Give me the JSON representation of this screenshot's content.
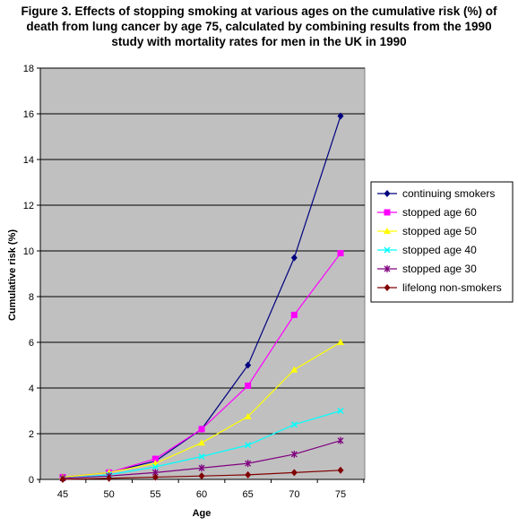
{
  "chart_data": {
    "type": "line",
    "title": [
      "Figure 3. Effects of stopping smoking at various ages on the cumulative risk (%) of",
      "death from lung cancer by age 75, calculated by combining  results from the 1990",
      "study with mortality rates for men in the UK in 1990"
    ],
    "xlabel": "Age",
    "ylabel": "Cumulative risk (%)",
    "x": [
      45,
      50,
      55,
      60,
      65,
      70,
      75
    ],
    "xlim": [
      45,
      75
    ],
    "ylim": [
      0,
      18
    ],
    "yticks": [
      0,
      2,
      4,
      6,
      8,
      10,
      12,
      14,
      16,
      18
    ],
    "grid": "horizontal",
    "legend_position": "right",
    "plot_background": "#c0c0c0",
    "series": [
      {
        "name": "continuing smokers",
        "color": "#000080",
        "marker": "diamond",
        "x": [
          45,
          50,
          55,
          60,
          65,
          70,
          75
        ],
        "values": [
          0.1,
          0.3,
          0.8,
          2.2,
          5.0,
          9.7,
          15.9
        ]
      },
      {
        "name": "stopped age 60",
        "color": "#ff00ff",
        "marker": "square",
        "x": [
          45,
          50,
          55,
          60,
          65,
          70,
          75
        ],
        "values": [
          0.1,
          0.3,
          0.9,
          2.2,
          4.1,
          7.2,
          9.9
        ]
      },
      {
        "name": "stopped age 50",
        "color": "#ffff00",
        "marker": "triangle",
        "x": [
          45,
          50,
          55,
          60,
          65,
          70,
          75
        ],
        "values": [
          0.1,
          0.3,
          0.7,
          1.6,
          2.75,
          4.8,
          6.0
        ]
      },
      {
        "name": "stopped age 40",
        "color": "#00ffff",
        "marker": "x",
        "x": [
          45,
          50,
          55,
          60,
          65,
          70,
          75
        ],
        "values": [
          0.05,
          0.2,
          0.55,
          1.0,
          1.5,
          2.4,
          3.0
        ]
      },
      {
        "name": "stopped age 30",
        "color": "#800080",
        "marker": "star",
        "x": [
          45,
          50,
          55,
          60,
          65,
          70,
          75
        ],
        "values": [
          0.05,
          0.15,
          0.3,
          0.5,
          0.7,
          1.1,
          1.7
        ]
      },
      {
        "name": "lifelong non-smokers",
        "color": "#800000",
        "marker": "diamond",
        "x": [
          45,
          50,
          55,
          60,
          65,
          70,
          75
        ],
        "values": [
          0.0,
          0.05,
          0.1,
          0.15,
          0.2,
          0.3,
          0.4
        ]
      }
    ]
  }
}
